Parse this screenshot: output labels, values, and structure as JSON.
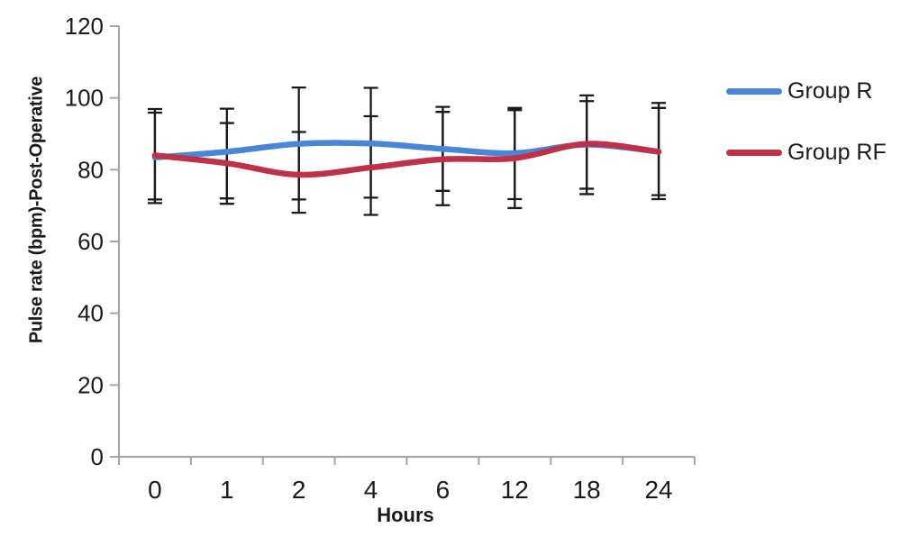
{
  "chart_data": {
    "type": "line",
    "title": "",
    "xlabel": "Hours",
    "ylabel": "Pulse rate (bpm)-Post-Operative",
    "categories": [
      "0",
      "1",
      "2",
      "4",
      "6",
      "12",
      "18",
      "24"
    ],
    "ylim": [
      0,
      120
    ],
    "y_ticks": [
      0,
      20,
      40,
      60,
      80,
      100,
      120
    ],
    "grid": false,
    "legend_position": "right",
    "axis_color": "#a6a6a6",
    "tick_label_color": "#1a1a1a",
    "error_bar_color": "#1a1a1a",
    "series": [
      {
        "name": "Group R",
        "color": "#4a86d8",
        "values": [
          83.4,
          85.0,
          87.2,
          87.3,
          85.8,
          84.6,
          87.0,
          85.0
        ]
      },
      {
        "name": "Group RF",
        "color": "#bf3049",
        "values": [
          84.0,
          81.8,
          78.6,
          80.6,
          82.9,
          83.2,
          87.2,
          85.0
        ]
      }
    ],
    "error_bars": [
      {
        "category": "0",
        "bars": [
          {
            "series": "Group R",
            "low": 70.7,
            "high": 95.9
          },
          {
            "series": "Group RF",
            "low": 71.7,
            "high": 96.9
          }
        ]
      },
      {
        "category": "1",
        "bars": [
          {
            "series": "Group R",
            "low": 72.0,
            "high": 97.0
          },
          {
            "series": "Group RF",
            "low": 70.5,
            "high": 93.0
          }
        ]
      },
      {
        "category": "2",
        "bars": [
          {
            "series": "Group R",
            "low": 71.7,
            "high": 102.9
          },
          {
            "series": "Group RF",
            "low": 68.0,
            "high": 90.5
          }
        ]
      },
      {
        "category": "4",
        "bars": [
          {
            "series": "Group R",
            "low": 72.2,
            "high": 102.8
          },
          {
            "series": "Group RF",
            "low": 67.4,
            "high": 94.9
          }
        ]
      },
      {
        "category": "6",
        "bars": [
          {
            "series": "Group R",
            "low": 74.1,
            "high": 97.5
          },
          {
            "series": "Group RF",
            "low": 70.1,
            "high": 96.1
          }
        ]
      },
      {
        "category": "12",
        "bars": [
          {
            "series": "Group R",
            "low": 71.8,
            "high": 97.2
          },
          {
            "series": "Group RF",
            "low": 69.3,
            "high": 96.6
          }
        ]
      },
      {
        "category": "18",
        "bars": [
          {
            "series": "Group R",
            "low": 74.7,
            "high": 100.7
          },
          {
            "series": "Group RF",
            "low": 73.2,
            "high": 99.1
          }
        ]
      },
      {
        "category": "24",
        "bars": [
          {
            "series": "Group R",
            "low": 72.9,
            "high": 98.6
          },
          {
            "series": "Group RF",
            "low": 71.8,
            "high": 97.2
          }
        ]
      }
    ]
  }
}
